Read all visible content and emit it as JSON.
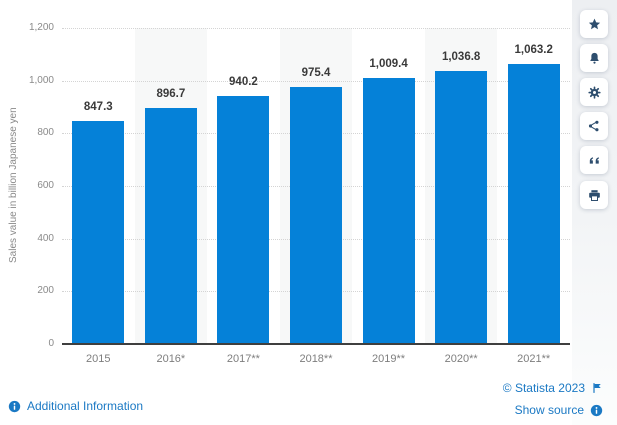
{
  "chart_data": {
    "type": "bar",
    "categories": [
      "2015",
      "2016*",
      "2017**",
      "2018**",
      "2019**",
      "2020**",
      "2021**"
    ],
    "values": [
      847.3,
      896.7,
      940.2,
      975.4,
      1009.4,
      1036.8,
      1063.2
    ],
    "value_labels": [
      "847.3",
      "896.7",
      "940.2",
      "975.4",
      "1,009.4",
      "1,036.8",
      "1,063.2"
    ],
    "title": "",
    "xlabel": "",
    "ylabel": "Sales value in billion Japanese yen",
    "ylim": [
      0,
      1200
    ],
    "ytick_step": 200,
    "ytick_labels": [
      "0",
      "200",
      "400",
      "600",
      "800",
      "1,000",
      "1,200"
    ],
    "grid": "horizontal-dotted",
    "legend": "none",
    "alternating_column_shading": true
  },
  "sidebar": {
    "buttons": [
      {
        "name": "favorite",
        "icon": "star-icon"
      },
      {
        "name": "notification",
        "icon": "bell-icon"
      },
      {
        "name": "settings",
        "icon": "gear-icon"
      },
      {
        "name": "share",
        "icon": "share-icon"
      },
      {
        "name": "cite",
        "icon": "quote-icon"
      },
      {
        "name": "print",
        "icon": "printer-icon"
      }
    ]
  },
  "footer": {
    "additional_information": "Additional Information",
    "copyright": "© Statista 2023",
    "show_source": "Show source"
  },
  "colors": {
    "bar": "#0581d8",
    "link": "#1b79c4",
    "icon": "#2e4e6e",
    "stripe": "#f7f8f8",
    "grid": "#d4d4d4",
    "axis": "#3f3f3f",
    "value_label": "#3a3a3a",
    "tick_label": "#8a8a8a"
  }
}
